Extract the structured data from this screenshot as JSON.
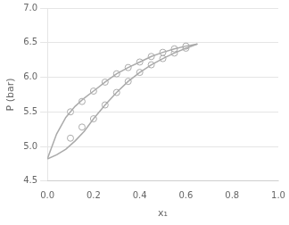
{
  "chart_data": {
    "type": "line",
    "xlabel": "x₁",
    "ylabel": "P (bar)",
    "xlim": [
      0,
      1
    ],
    "ylim": [
      4.5,
      7
    ],
    "xticks": [
      {
        "value": 0,
        "label": "0.0"
      },
      0.2,
      0.4,
      0.6,
      0.8,
      {
        "value": 1.0,
        "label": "1.0"
      }
    ],
    "yticks": [
      4.5,
      {
        "value": 5.0,
        "label": "5.0"
      },
      5.5,
      {
        "value": 6.0,
        "label": "6.0"
      },
      6.5,
      {
        "value": 7.0,
        "label": "7.0"
      }
    ],
    "grid": "y",
    "series": [
      {
        "x": [
          0.0,
          0.04,
          0.08,
          0.12,
          0.16,
          0.2,
          0.25,
          0.3,
          0.35,
          0.4,
          0.45,
          0.5,
          0.55,
          0.6,
          0.65
        ],
        "values": [
          4.82,
          5.18,
          5.42,
          5.58,
          5.7,
          5.8,
          5.93,
          6.05,
          6.14,
          6.22,
          6.3,
          6.36,
          6.41,
          6.45,
          6.48
        ],
        "color": "#aaaaaa",
        "line_style": "solid",
        "marker": "none"
      },
      {
        "x": [
          0.0,
          0.04,
          0.08,
          0.12,
          0.16,
          0.2,
          0.25,
          0.3,
          0.35,
          0.4,
          0.45,
          0.5,
          0.55,
          0.6,
          0.65
        ],
        "values": [
          4.82,
          4.88,
          4.96,
          5.08,
          5.22,
          5.4,
          5.6,
          5.78,
          5.94,
          6.07,
          6.18,
          6.27,
          6.35,
          6.42,
          6.48
        ],
        "color": "#aaaaaa",
        "line_style": "solid",
        "marker": "none"
      },
      {
        "x": [
          0.1,
          0.15,
          0.2,
          0.25,
          0.3,
          0.35,
          0.4,
          0.45,
          0.5,
          0.55,
          0.6
        ],
        "values": [
          5.5,
          5.65,
          5.8,
          5.93,
          6.05,
          6.14,
          6.22,
          6.3,
          6.36,
          6.41,
          6.45
        ],
        "color": "#aaaaaa",
        "line_style": "none",
        "marker": "circle"
      },
      {
        "x": [
          0.1,
          0.15,
          0.2,
          0.25,
          0.3,
          0.35,
          0.4,
          0.45,
          0.5,
          0.55,
          0.6
        ],
        "values": [
          5.12,
          5.28,
          5.4,
          5.6,
          5.78,
          5.94,
          6.07,
          6.18,
          6.27,
          6.35,
          6.42
        ],
        "color": "#aaaaaa",
        "line_style": "none",
        "marker": "circle"
      }
    ]
  }
}
